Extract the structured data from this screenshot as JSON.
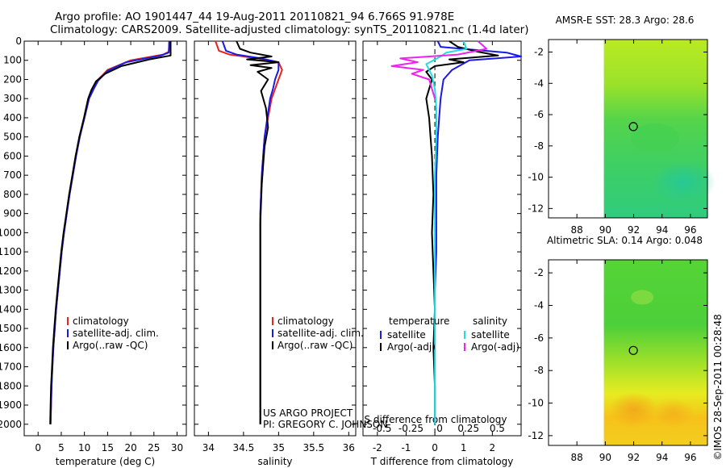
{
  "header": {
    "line1": "Argo profile: AO 1901447_44 19-Aug-2011 20110821_94 6.766S 91.978E",
    "line2": "Climatology: CARS2009. Satellite-adjusted climatology: synTS_20110821.nc (1.4d later)"
  },
  "side_stamp": "©IMOS 28-Sep-2011 00:28:48",
  "project_note": {
    "line1": "US ARGO PROJECT",
    "line2": "PI: GREGORY C. JOHNSON"
  },
  "colors": {
    "climatology": "#e8231e",
    "satellite": "#1a1ae6",
    "argo": "#000000",
    "satellite_salinity": "#22dddd",
    "argo_salinity": "#ee22ee"
  },
  "chart_data": [
    {
      "type": "line",
      "name": "temperature-profile",
      "xlabel": "temperature (deg C)",
      "ylabel": "",
      "xlim": [
        -3,
        32
      ],
      "ylim": [
        2060,
        0
      ],
      "xticks": [
        0,
        5,
        10,
        15,
        20,
        25,
        30
      ],
      "yticks": [
        0,
        100,
        200,
        300,
        400,
        500,
        600,
        700,
        800,
        900,
        1000,
        1100,
        1200,
        1300,
        1400,
        1500,
        1600,
        1700,
        1800,
        1900,
        2000
      ],
      "legend": [
        "climatology",
        "satellite-adj. clim.",
        "Argo(..raw -QC)"
      ],
      "series": [
        {
          "name": "climatology",
          "color_key": "climatology",
          "x": [
            28.3,
            28.2,
            27.0,
            20.0,
            15.0,
            13.0,
            12.0,
            11.0,
            10.0,
            9.0,
            8.2,
            7.5,
            6.8,
            6.2,
            5.6,
            5.1,
            4.7,
            4.3,
            3.9,
            3.6,
            3.3,
            3.1,
            2.9,
            2.8,
            2.7
          ],
          "y": [
            0,
            55,
            70,
            100,
            150,
            200,
            250,
            300,
            400,
            500,
            600,
            700,
            800,
            900,
            1000,
            1100,
            1200,
            1300,
            1400,
            1500,
            1600,
            1700,
            1800,
            1900,
            2000
          ]
        },
        {
          "name": "satellite-adj. clim.",
          "color_key": "satellite",
          "x": [
            28.3,
            28.2,
            26.5,
            19.0,
            15.0,
            13.0,
            12.0,
            11.0,
            10.0,
            9.0,
            8.2,
            7.5,
            6.8,
            6.2,
            5.6,
            5.1,
            4.7,
            4.3,
            3.9,
            3.6,
            3.3,
            3.1,
            2.9,
            2.8,
            2.7
          ],
          "y": [
            0,
            60,
            75,
            110,
            155,
            205,
            250,
            300,
            400,
            500,
            600,
            700,
            800,
            900,
            1000,
            1100,
            1200,
            1300,
            1400,
            1500,
            1600,
            1700,
            1800,
            1900,
            2000
          ]
        },
        {
          "name": "Argo(..raw -QC)",
          "color_key": "argo",
          "x": [
            28.6,
            28.6,
            24.0,
            18.0,
            14.5,
            12.5,
            11.5,
            10.8,
            9.9,
            8.9,
            8.1,
            7.4,
            6.7,
            6.1,
            5.5,
            5.0,
            4.6,
            4.2,
            3.8,
            3.5,
            3.2,
            3.0,
            2.8,
            2.7,
            2.6
          ],
          "y": [
            0,
            75,
            95,
            130,
            170,
            210,
            255,
            300,
            400,
            500,
            600,
            700,
            800,
            900,
            1000,
            1100,
            1200,
            1300,
            1400,
            1500,
            1600,
            1700,
            1800,
            1900,
            2000
          ]
        }
      ]
    },
    {
      "type": "line",
      "name": "salinity-profile",
      "xlabel": "salinity",
      "xlim": [
        33.8,
        36.1
      ],
      "ylim": [
        2060,
        0
      ],
      "xticks": [
        34,
        34.5,
        35,
        35.5,
        36
      ],
      "legend": [
        "climatology",
        "satellite-adj. clim.",
        "Argo(..raw -QC)"
      ],
      "series": [
        {
          "name": "climatology",
          "color_key": "climatology",
          "x": [
            34.1,
            34.15,
            34.3,
            34.7,
            35.0,
            35.05,
            35.0,
            34.95,
            34.9,
            34.85,
            34.8,
            34.78,
            34.76,
            34.75,
            34.74,
            34.74,
            34.74,
            34.74,
            34.74,
            34.74,
            34.74,
            34.74,
            34.74,
            34.74
          ],
          "y": [
            0,
            50,
            70,
            90,
            110,
            150,
            200,
            250,
            300,
            400,
            500,
            600,
            700,
            800,
            900,
            1000,
            1100,
            1200,
            1300,
            1400,
            1500,
            1600,
            1800,
            2000
          ]
        },
        {
          "name": "satellite-adj. clim.",
          "color_key": "satellite",
          "x": [
            34.2,
            34.25,
            34.4,
            34.75,
            35.0,
            35.0,
            34.95,
            34.92,
            34.88,
            34.84,
            34.8,
            34.78,
            34.76,
            34.75,
            34.74,
            34.74,
            34.74,
            34.74,
            34.74,
            34.74,
            34.74,
            34.74,
            34.74,
            34.74
          ],
          "y": [
            0,
            50,
            70,
            90,
            110,
            150,
            200,
            250,
            300,
            400,
            500,
            600,
            700,
            800,
            900,
            1000,
            1100,
            1200,
            1300,
            1400,
            1500,
            1600,
            1800,
            2000
          ]
        },
        {
          "name": "Argo(..raw -QC)",
          "color_key": "argo",
          "x": [
            34.4,
            34.45,
            34.6,
            34.9,
            34.55,
            35.0,
            34.6,
            34.9,
            34.7,
            34.85,
            34.75,
            34.82,
            34.85,
            34.8,
            34.78,
            34.76,
            34.75,
            34.74,
            34.74,
            34.74,
            34.74,
            34.74,
            34.74,
            34.74,
            34.74,
            34.74
          ],
          "y": [
            0,
            40,
            60,
            80,
            95,
            110,
            125,
            140,
            160,
            200,
            260,
            350,
            450,
            550,
            650,
            750,
            850,
            950,
            1050,
            1150,
            1300,
            1450,
            1600,
            1750,
            1900,
            2000
          ]
        }
      ]
    },
    {
      "type": "line",
      "name": "difference-profile",
      "xlabel": "T difference from climatology",
      "xlabel_secondary": "S difference from climatology",
      "xlim": [
        -2.5,
        3.0
      ],
      "ylim": [
        2060,
        0
      ],
      "xticks": [
        -2,
        -1,
        0,
        1,
        2
      ],
      "xticks_secondary": [
        "-0.5",
        "-0.25",
        "0",
        "0.25",
        "0.5"
      ],
      "legend_groups": [
        {
          "title": "temperature",
          "entries": [
            "satellite",
            "Argo(-adj)"
          ]
        },
        {
          "title": "salinity",
          "entries": [
            "satellite",
            "Argo(-adj)"
          ]
        }
      ],
      "series": [
        {
          "name": "temperature satellite",
          "color_key": "satellite",
          "x": [
            0.1,
            0.2,
            2.5,
            3.0,
            1.2,
            0.6,
            0.3,
            0.2,
            0.15,
            0.1,
            0.05,
            0.05,
            0.05,
            0.0,
            0.0,
            0.0,
            0.0,
            0.0
          ],
          "y": [
            0,
            30,
            60,
            80,
            100,
            150,
            200,
            300,
            400,
            500,
            700,
            900,
            1100,
            1300,
            1500,
            1700,
            1900,
            2000
          ]
        },
        {
          "name": "temperature Argo(-adj)",
          "color_key": "argo",
          "x": [
            0.5,
            0.8,
            1.5,
            2.2,
            0.5,
            1.0,
            0.0,
            -0.3,
            -0.1,
            -0.3,
            -0.2,
            -0.15,
            -0.1,
            -0.05,
            -0.1,
            -0.05,
            0.0,
            -0.05,
            0.0,
            0.0
          ],
          "y": [
            0,
            30,
            55,
            75,
            95,
            110,
            130,
            160,
            200,
            300,
            400,
            500,
            600,
            800,
            1000,
            1200,
            1400,
            1600,
            1800,
            2000
          ]
        },
        {
          "name": "salinity satellite",
          "color_key": "satellite_salinity",
          "x": [
            1.0,
            1.1,
            0.4,
            0.2,
            -0.3,
            -0.1,
            0.0,
            0.05,
            0.05,
            0.0,
            0.0,
            0.0,
            0.0,
            0.0,
            0.0,
            0.0
          ],
          "y": [
            0,
            40,
            60,
            80,
            120,
            180,
            250,
            350,
            500,
            700,
            900,
            1100,
            1300,
            1500,
            1700,
            2000
          ]
        },
        {
          "name": "salinity Argo(-adj)",
          "color_key": "argo_salinity",
          "x": [
            1.5,
            1.8,
            0.8,
            -1.2,
            -0.6,
            -1.5,
            -0.4,
            -0.8,
            -0.2,
            -0.1,
            0.0
          ],
          "y": [
            0,
            40,
            70,
            90,
            110,
            130,
            150,
            170,
            200,
            250,
            300
          ]
        }
      ]
    },
    {
      "type": "heatmap",
      "name": "sst-map",
      "title": "AMSR-E SST: 28.3 Argo: 28.6",
      "xlim": [
        86,
        97.2
      ],
      "ylim": [
        -12.6,
        -1.2
      ],
      "xticks": [
        88,
        90,
        92,
        94,
        96
      ],
      "yticks": [
        -2,
        -4,
        -6,
        -8,
        -10,
        -12
      ],
      "data_lon_range": [
        89.9,
        97.2
      ],
      "argo_position": {
        "lon": 91.978,
        "lat": -6.766
      }
    },
    {
      "type": "heatmap",
      "name": "sla-map",
      "title": "Altimetric SLA: 0.14 Argo: 0.048",
      "xlim": [
        86,
        97.2
      ],
      "ylim": [
        -12.6,
        -1.2
      ],
      "xticks": [
        88,
        90,
        92,
        94,
        96
      ],
      "yticks": [
        -2,
        -4,
        -6,
        -8,
        -10,
        -12
      ],
      "data_lon_range": [
        89.9,
        97.2
      ],
      "argo_position": {
        "lon": 91.978,
        "lat": -6.766
      }
    }
  ]
}
